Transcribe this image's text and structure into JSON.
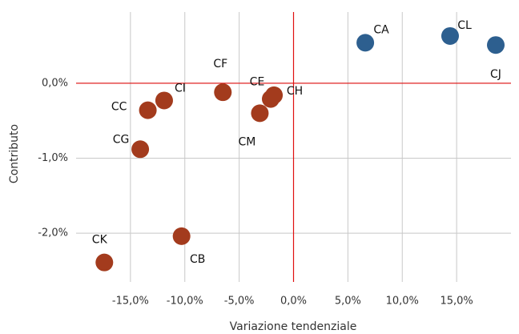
{
  "chart_data": {
    "type": "scatter",
    "x_label": "Variazione tendenziale",
    "y_label": "Contributo",
    "labels": [
      "CA",
      "CL",
      "CJ",
      "CF",
      "CE",
      "CH",
      "CM",
      "CI",
      "CC",
      "CG",
      "CB",
      "CK"
    ],
    "x": [
      6.6,
      14.4,
      18.6,
      -6.5,
      -2.1,
      -1.8,
      -3.1,
      -11.9,
      -13.4,
      -14.1,
      -10.3,
      -17.4
    ],
    "y": [
      0.54,
      0.63,
      0.51,
      -0.12,
      -0.21,
      -0.16,
      -0.4,
      -0.23,
      -0.36,
      -0.88,
      -2.04,
      -2.39
    ],
    "colors": [
      "#2d5f8f",
      "#2d5f8f",
      "#2d5f8f",
      "#a33b1d",
      "#a33b1d",
      "#a33b1d",
      "#a33b1d",
      "#a33b1d",
      "#a33b1d",
      "#a33b1d",
      "#a33b1d",
      "#a33b1d"
    ],
    "xlim": [
      -20,
      20
    ],
    "ylim": [
      -2.65,
      0.95
    ],
    "xticks": [
      {
        "value": -15,
        "label": "-15,0%"
      },
      {
        "value": -10,
        "label": "-10,0%"
      },
      {
        "value": -5,
        "label": "-5,0%"
      },
      {
        "value": 0,
        "label": "0,0%"
      },
      {
        "value": 5,
        "label": "5,0%"
      },
      {
        "value": 10,
        "label": "10,0%"
      },
      {
        "value": 15,
        "label": "15,0%"
      }
    ],
    "yticks": [
      {
        "value": -2,
        "label": "-2,0%"
      },
      {
        "value": -1,
        "label": "-1,0%"
      },
      {
        "value": 0,
        "label": "0,0%"
      }
    ],
    "grid": true,
    "zero_line_color": "#e01010"
  }
}
